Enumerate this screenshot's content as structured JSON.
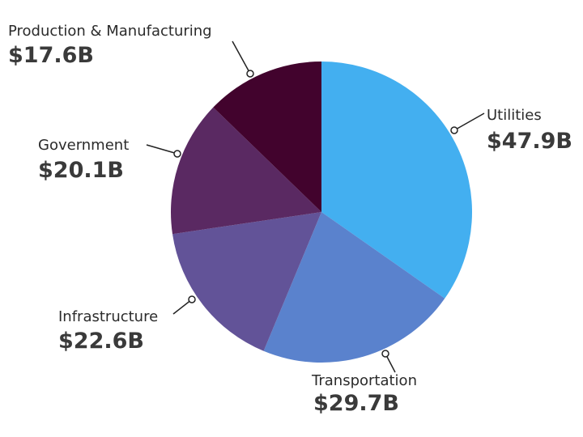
{
  "chart_data": {
    "type": "pie",
    "start_angle_deg": 0,
    "direction": "clockwise",
    "legend": "none (direct labels)",
    "slices": [
      {
        "label": "Utilities",
        "value": 47.9,
        "value_text": "$47.9B",
        "color": "#43aff0"
      },
      {
        "label": "Transportation",
        "value": 29.7,
        "value_text": "$29.7B",
        "color": "#5a82cd"
      },
      {
        "label": "Infrastructure",
        "value": 22.6,
        "value_text": "$22.6B",
        "color": "#625398"
      },
      {
        "label": "Government",
        "value": 20.1,
        "value_text": "$20.1B",
        "color": "#5a2962"
      },
      {
        "label": "Production & Manufacturing",
        "value": 17.6,
        "value_text": "$17.6B",
        "color": "#42032d"
      }
    ]
  }
}
